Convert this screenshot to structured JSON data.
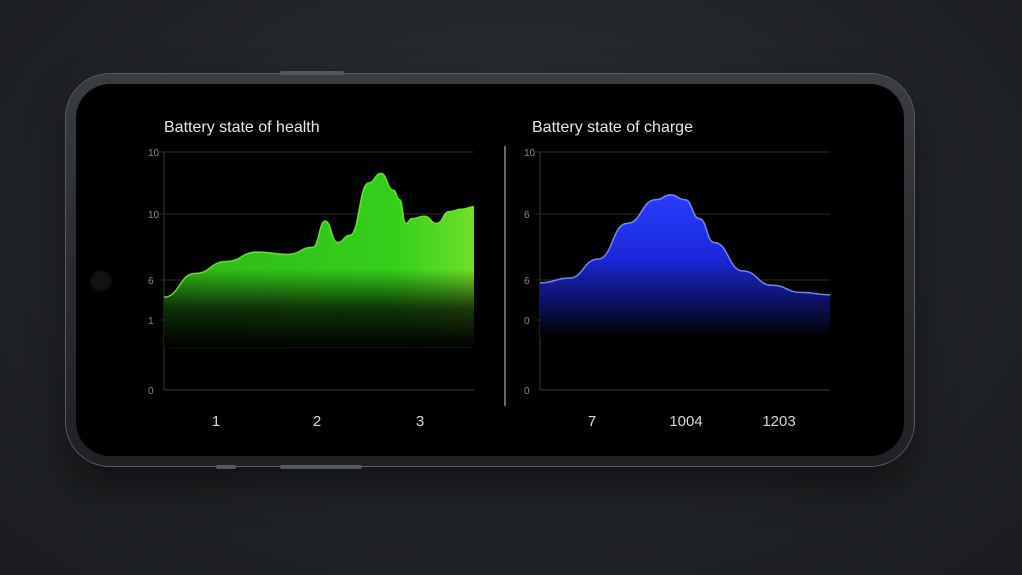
{
  "chart_data": [
    {
      "type": "area",
      "title": "Battery state of health",
      "xlabel": "",
      "ylabel": "",
      "x_ticks": [
        "1",
        "2",
        "3"
      ],
      "y_ticks": [
        "10",
        "10",
        "6",
        "1",
        "0"
      ],
      "x": [
        0,
        0.1,
        0.2,
        0.3,
        0.4,
        0.48,
        0.52,
        0.56,
        0.6,
        0.66,
        0.7,
        0.74,
        0.76,
        0.78,
        0.8,
        0.84,
        0.88,
        0.92,
        0.96,
        1.0
      ],
      "values": [
        0.39,
        0.49,
        0.54,
        0.58,
        0.57,
        0.6,
        0.71,
        0.62,
        0.65,
        0.87,
        0.91,
        0.84,
        0.8,
        0.7,
        0.72,
        0.73,
        0.7,
        0.75,
        0.76,
        0.77
      ],
      "color": "#3ec51f",
      "grid": true
    },
    {
      "type": "area",
      "title": "Battery state of charge",
      "xlabel": "",
      "ylabel": "",
      "x_ticks": [
        "7",
        "1004",
        "1203"
      ],
      "y_ticks": [
        "10",
        "6",
        "6",
        "0",
        "0"
      ],
      "x": [
        0,
        0.1,
        0.2,
        0.3,
        0.4,
        0.45,
        0.5,
        0.55,
        0.6,
        0.7,
        0.8,
        0.9,
        1.0
      ],
      "values": [
        0.45,
        0.47,
        0.55,
        0.7,
        0.8,
        0.82,
        0.8,
        0.72,
        0.62,
        0.5,
        0.44,
        0.41,
        0.4
      ],
      "color": "#1c2cff",
      "grid": true
    }
  ]
}
